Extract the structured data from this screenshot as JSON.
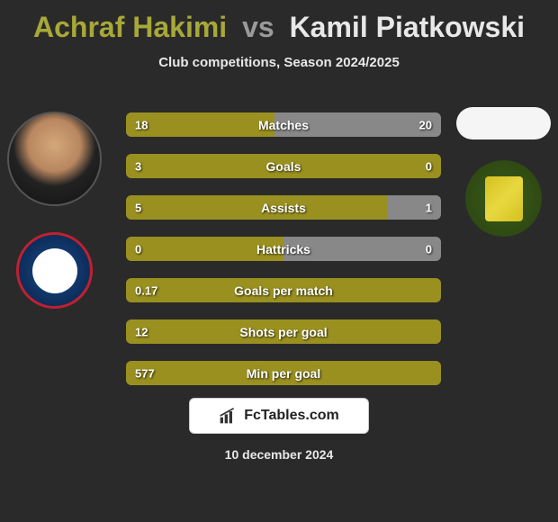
{
  "title": {
    "player1": "Achraf Hakimi",
    "vs": "vs",
    "player2": "Kamil Piatkowski"
  },
  "subtitle": "Club competitions, Season 2024/2025",
  "colors": {
    "player1_bar": "#9a9020",
    "player2_bar": "#888888",
    "background": "#2a2a2a",
    "player1_title": "#a8a838",
    "player2_title": "#e8e8e8",
    "vs_title": "#9a9a9a"
  },
  "stats": [
    {
      "label": "Matches",
      "left_val": "18",
      "right_val": "20",
      "left_pct": 47,
      "right_pct": 53
    },
    {
      "label": "Goals",
      "left_val": "3",
      "right_val": "0",
      "left_pct": 100,
      "right_pct": 0
    },
    {
      "label": "Assists",
      "left_val": "5",
      "right_val": "1",
      "left_pct": 83,
      "right_pct": 17
    },
    {
      "label": "Hattricks",
      "left_val": "0",
      "right_val": "0",
      "left_pct": 50,
      "right_pct": 50
    },
    {
      "label": "Goals per match",
      "left_val": "0.17",
      "right_val": "",
      "left_pct": 100,
      "right_pct": 0
    },
    {
      "label": "Shots per goal",
      "left_val": "12",
      "right_val": "",
      "left_pct": 100,
      "right_pct": 0
    },
    {
      "label": "Min per goal",
      "left_val": "577",
      "right_val": "",
      "left_pct": 100,
      "right_pct": 0
    }
  ],
  "footer": {
    "brand_icon_name": "chart-bar-icon",
    "brand_text": "FcTables.com",
    "date": "10 december 2024"
  },
  "clubs": {
    "left_name": "psg-badge",
    "right_name": "club-badge"
  }
}
